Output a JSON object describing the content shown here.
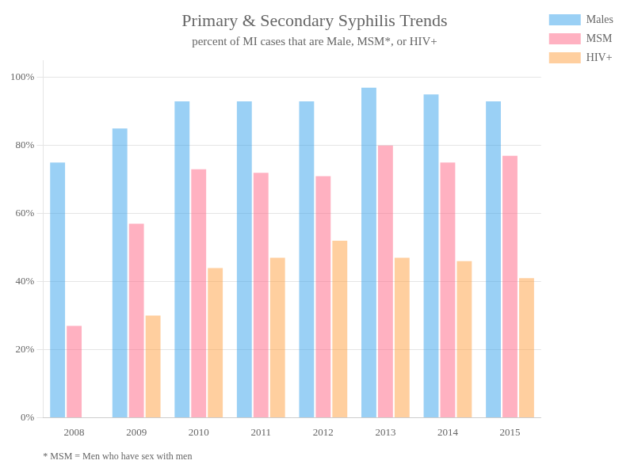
{
  "chart_data": {
    "type": "bar",
    "title": "Primary & Secondary Syphilis Trends",
    "subtitle": "percent of MI cases that are Male, MSM*, or HIV+",
    "footnote": "* MSM = Men who have sex with men",
    "categories": [
      "2008",
      "2009",
      "2010",
      "2011",
      "2012",
      "2013",
      "2014",
      "2015"
    ],
    "series": [
      {
        "name": "Males",
        "values": [
          75,
          85,
          93,
          93,
          93,
          97,
          95,
          93
        ]
      },
      {
        "name": "MSM",
        "values": [
          27,
          57,
          73,
          72,
          71,
          80,
          75,
          77
        ]
      },
      {
        "name": "HIV+",
        "values": [
          0,
          30,
          44,
          47,
          52,
          47,
          46,
          41
        ]
      }
    ],
    "ylim": [
      0,
      105
    ],
    "yticks": [
      {
        "value": 0,
        "label": "0%"
      },
      {
        "value": 20,
        "label": "20%"
      },
      {
        "value": 40,
        "label": "40%"
      },
      {
        "value": 60,
        "label": "60%"
      },
      {
        "value": 80,
        "label": "80%"
      },
      {
        "value": 100,
        "label": "100%"
      }
    ],
    "grid": true,
    "legend": "right"
  }
}
